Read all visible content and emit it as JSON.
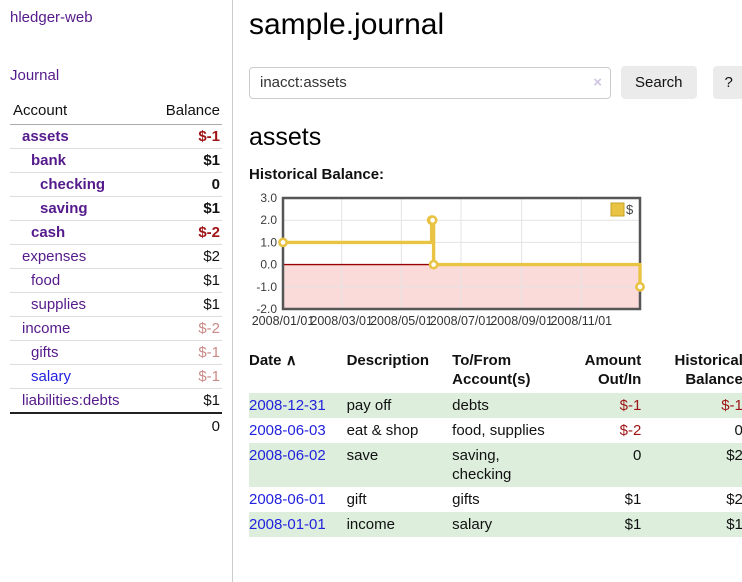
{
  "app": {
    "title": "hledger-web"
  },
  "sidebar": {
    "nav_journal": "Journal",
    "accounts_table": {
      "col_account": "Account",
      "col_balance": "Balance",
      "rows": [
        {
          "account": "assets",
          "depth": 0,
          "bold": true,
          "balance": "$-1",
          "balance_style": "neg-strong",
          "link_style": "purple"
        },
        {
          "account": "bank",
          "depth": 1,
          "bold": true,
          "balance": "$1",
          "balance_style": "plain",
          "link_style": "purple"
        },
        {
          "account": "checking",
          "depth": 2,
          "bold": true,
          "balance": "0",
          "balance_style": "plain",
          "link_style": "purple"
        },
        {
          "account": "saving",
          "depth": 2,
          "bold": true,
          "balance": "$1",
          "balance_style": "plain",
          "link_style": "purple"
        },
        {
          "account": "cash",
          "depth": 1,
          "bold": true,
          "balance": "$-2",
          "balance_style": "neg-strong",
          "link_style": "purple"
        },
        {
          "account": "expenses",
          "depth": 0,
          "bold": false,
          "balance": "$2",
          "balance_style": "plain",
          "link_style": "purple"
        },
        {
          "account": "food",
          "depth": 1,
          "bold": false,
          "balance": "$1",
          "balance_style": "plain",
          "link_style": "purple"
        },
        {
          "account": "supplies",
          "depth": 1,
          "bold": false,
          "balance": "$1",
          "balance_style": "plain",
          "link_style": "purple"
        },
        {
          "account": "income",
          "depth": 0,
          "bold": false,
          "balance": "$-2",
          "balance_style": "neg-soft",
          "link_style": "purple"
        },
        {
          "account": "gifts",
          "depth": 1,
          "bold": false,
          "balance": "$-1",
          "balance_style": "neg-soft",
          "link_style": "purple"
        },
        {
          "account": "salary",
          "depth": 1,
          "bold": false,
          "balance": "$-1",
          "balance_style": "neg-soft",
          "link_style": "blue"
        },
        {
          "account": "liabilities:debts",
          "depth": 0,
          "bold": false,
          "balance": "$1",
          "balance_style": "plain",
          "link_style": "purple"
        }
      ],
      "total": "0"
    }
  },
  "main": {
    "title": "sample.journal",
    "search": {
      "value": "inacct:assets",
      "clear_icon": "×",
      "button": "Search",
      "help_button": "?"
    },
    "section_title": "assets"
  },
  "chart_data": {
    "type": "line",
    "step": true,
    "title": "Historical Balance:",
    "legend": "$",
    "legend_position": "top-right",
    "grid": true,
    "line_color": "#e8c344",
    "marker_fill": "#ffffff",
    "negative_region_color": "#fbdada",
    "zero_line_color": "#9a0000",
    "grid_color": "#e3e3e3",
    "border_color": "#565656",
    "x_range": [
      "2008-01-01",
      "2008-12-31"
    ],
    "ylim": [
      -2,
      3
    ],
    "y_ticks": [
      3.0,
      2.0,
      1.0,
      0.0,
      -1.0,
      -2.0
    ],
    "y_tick_labels": [
      "3.0",
      "2.0",
      "1.0",
      "0.0",
      "-1.0",
      "-2.0"
    ],
    "x_ticks": [
      {
        "date": "2008-01-01",
        "label": "2008/01/01"
      },
      {
        "date": "2008-03-01",
        "label": "2008/03/01"
      },
      {
        "date": "2008-05-01",
        "label": "2008/05/01"
      },
      {
        "date": "2008-07-01",
        "label": "2008/07/01"
      },
      {
        "date": "2008-09-01",
        "label": "2008/09/01"
      },
      {
        "date": "2008-11-01",
        "label": "2008/11/01"
      }
    ],
    "series": [
      {
        "name": "$",
        "points": [
          [
            "2008-01-01",
            1
          ],
          [
            "2008-06-01",
            2
          ],
          [
            "2008-06-02",
            2
          ],
          [
            "2008-06-03",
            0
          ],
          [
            "2008-12-31",
            -1
          ]
        ]
      }
    ]
  },
  "transactions": {
    "headers": {
      "date": "Date",
      "sort_icon": "∧",
      "description": "Description",
      "accounts": "To/From Account(s)",
      "amount": "Amount Out/In",
      "balance": "Historical Balance"
    },
    "rows": [
      {
        "date": "2008-12-31",
        "description": "pay off",
        "accounts": "debts",
        "amount": "$-1",
        "amount_neg": true,
        "balance": "$-1",
        "balance_neg": true
      },
      {
        "date": "2008-06-03",
        "description": "eat & shop",
        "accounts": "food, supplies",
        "amount": "$-2",
        "amount_neg": true,
        "balance": "0",
        "balance_neg": false
      },
      {
        "date": "2008-06-02",
        "description": "save",
        "accounts": "saving, checking",
        "amount": "0",
        "amount_neg": false,
        "balance": "$2",
        "balance_neg": false
      },
      {
        "date": "2008-06-01",
        "description": "gift",
        "accounts": "gifts",
        "amount": "$1",
        "amount_neg": false,
        "balance": "$2",
        "balance_neg": false
      },
      {
        "date": "2008-01-01",
        "description": "income",
        "accounts": "salary",
        "amount": "$1",
        "amount_neg": false,
        "balance": "$1",
        "balance_neg": false
      }
    ]
  }
}
